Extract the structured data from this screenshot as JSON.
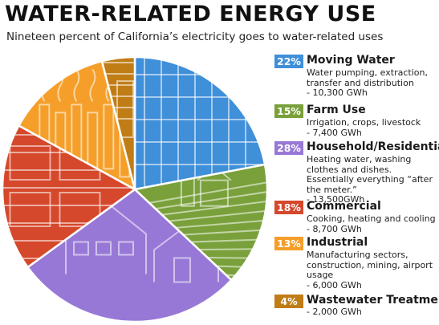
{
  "header": {
    "title": "WATER-RELATED ENERGY USE",
    "subtitle": "Nineteen percent of California’s electricity goes to water-related uses"
  },
  "chart_data": {
    "type": "pie",
    "title": "WATER-RELATED ENERGY USE",
    "subtitle": "Nineteen percent of California’s electricity goes to water-related uses",
    "slices": [
      {
        "name": "Moving Water",
        "percent_label": "22%",
        "value": 22,
        "gwh": 10300,
        "description": "Water pumping, extraction, transfer and distribution",
        "gwh_label": "- 10,300 GWh",
        "color": "#3f8fd9",
        "illustration": "pipes"
      },
      {
        "name": "Farm Use",
        "percent_label": "15%",
        "value": 15,
        "gwh": 7400,
        "description": "Irrigation, crops, livestock",
        "gwh_label": "- 7,400 GWh",
        "color": "#79a03a",
        "illustration": "farm-barn-silo"
      },
      {
        "name": "Household/Residential",
        "percent_label": "28%",
        "value": 28,
        "gwh": 13500,
        "description": "Heating water, washing clothes and dishes. Essentially everything “after the meter.”",
        "gwh_label": "- 13,500GWh",
        "color": "#9878d6",
        "illustration": "houses"
      },
      {
        "name": "Commercial",
        "percent_label": "18%",
        "value": 18,
        "gwh": 8700,
        "description": "Cooking, heating and cooling",
        "gwh_label": "- 8,700 GWh",
        "color": "#d5482c",
        "illustration": "storefronts"
      },
      {
        "name": "Industrial",
        "percent_label": "13%",
        "value": 13,
        "gwh": 6000,
        "description": "Manufacturing sectors, construction, mining, airport usage",
        "gwh_label": "- 6,000 GWh",
        "color": "#f59f2a",
        "illustration": "factories"
      },
      {
        "name": "Wastewater Treatment",
        "percent_label": "4%",
        "value": 4,
        "gwh": 2000,
        "description": "",
        "gwh_label": "- 2,000 GWh",
        "color": "#c07d16",
        "illustration": "treatment-tank"
      }
    ],
    "legend_placement": "right"
  }
}
